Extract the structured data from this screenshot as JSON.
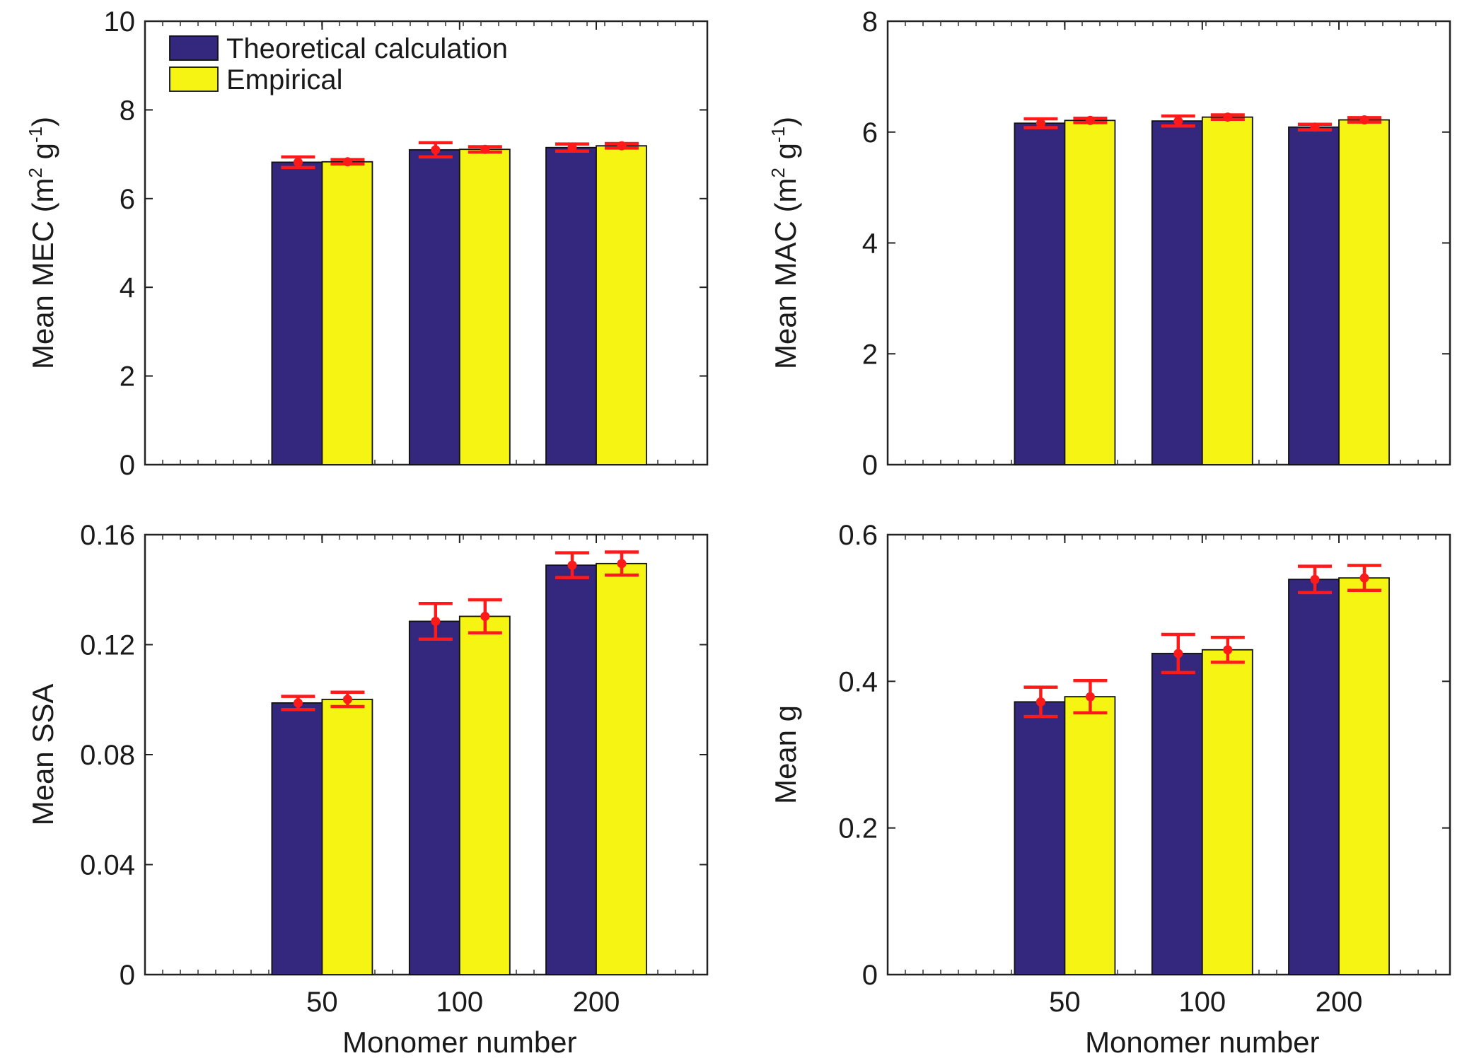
{
  "legend": {
    "series": [
      {
        "name": "Theoretical calculation",
        "color": "#34287e"
      },
      {
        "name": "Empirical",
        "color": "#f6f412"
      }
    ]
  },
  "error_bar_color": "#ff1a1a",
  "chart_data": [
    {
      "type": "bar",
      "panel": "top-left",
      "categories": [
        "50",
        "100",
        "200"
      ],
      "series": [
        {
          "name": "Theoretical calculation",
          "values": [
            6.82,
            7.1,
            7.15
          ],
          "errors": [
            0.12,
            0.16,
            0.08
          ]
        },
        {
          "name": "Empirical",
          "values": [
            6.83,
            7.11,
            7.19
          ],
          "errors": [
            0.05,
            0.06,
            0.05
          ]
        }
      ],
      "ylabel": {
        "prefix": "Mean MEC (m",
        "sup1": "2",
        "mid": " g",
        "sup2": "-1",
        "suffix": ")"
      },
      "xlabel": "",
      "ylim": [
        0,
        10
      ],
      "yticks": [
        "0",
        "2",
        "4",
        "6",
        "8",
        "10"
      ],
      "show_xticklabels": false
    },
    {
      "type": "bar",
      "panel": "top-right",
      "categories": [
        "50",
        "100",
        "200"
      ],
      "series": [
        {
          "name": "Theoretical calculation",
          "values": [
            6.16,
            6.2,
            6.09
          ],
          "errors": [
            0.08,
            0.09,
            0.05
          ]
        },
        {
          "name": "Empirical",
          "values": [
            6.21,
            6.27,
            6.22
          ],
          "errors": [
            0.04,
            0.04,
            0.04
          ]
        }
      ],
      "ylabel": {
        "prefix": "Mean MAC (m",
        "sup1": "2",
        "mid": " g",
        "sup2": "-1",
        "suffix": ")"
      },
      "xlabel": "",
      "ylim": [
        0,
        8
      ],
      "yticks": [
        "0",
        "2",
        "4",
        "6",
        "8"
      ],
      "show_xticklabels": false
    },
    {
      "type": "bar",
      "panel": "bottom-left",
      "categories": [
        "50",
        "100",
        "200"
      ],
      "series": [
        {
          "name": "Theoretical calculation",
          "values": [
            0.0988,
            0.1285,
            0.1489
          ],
          "errors": [
            0.0024,
            0.0065,
            0.0045
          ]
        },
        {
          "name": "Empirical",
          "values": [
            0.1001,
            0.1303,
            0.1495
          ],
          "errors": [
            0.0026,
            0.006,
            0.0042
          ]
        }
      ],
      "ylabel": {
        "prefix": "Mean SSA"
      },
      "xlabel": "Monomer number",
      "ylim": [
        0,
        0.16
      ],
      "yticks": [
        "0",
        "0.04",
        "0.08",
        "0.12",
        "0.16"
      ],
      "show_xticklabels": true
    },
    {
      "type": "bar",
      "panel": "bottom-right",
      "categories": [
        "50",
        "100",
        "200"
      ],
      "series": [
        {
          "name": "Theoretical calculation",
          "values": [
            0.372,
            0.438,
            0.539
          ],
          "errors": [
            0.02,
            0.026,
            0.018
          ]
        },
        {
          "name": "Empirical",
          "values": [
            0.379,
            0.443,
            0.541
          ],
          "errors": [
            0.022,
            0.017,
            0.017
          ]
        }
      ],
      "ylabel": {
        "prefix": "Mean g"
      },
      "xlabel": "Monomer number",
      "ylim": [
        0,
        0.6
      ],
      "yticks": [
        "0",
        "0.2",
        "0.4",
        "0.6"
      ],
      "show_xticklabels": true
    }
  ]
}
